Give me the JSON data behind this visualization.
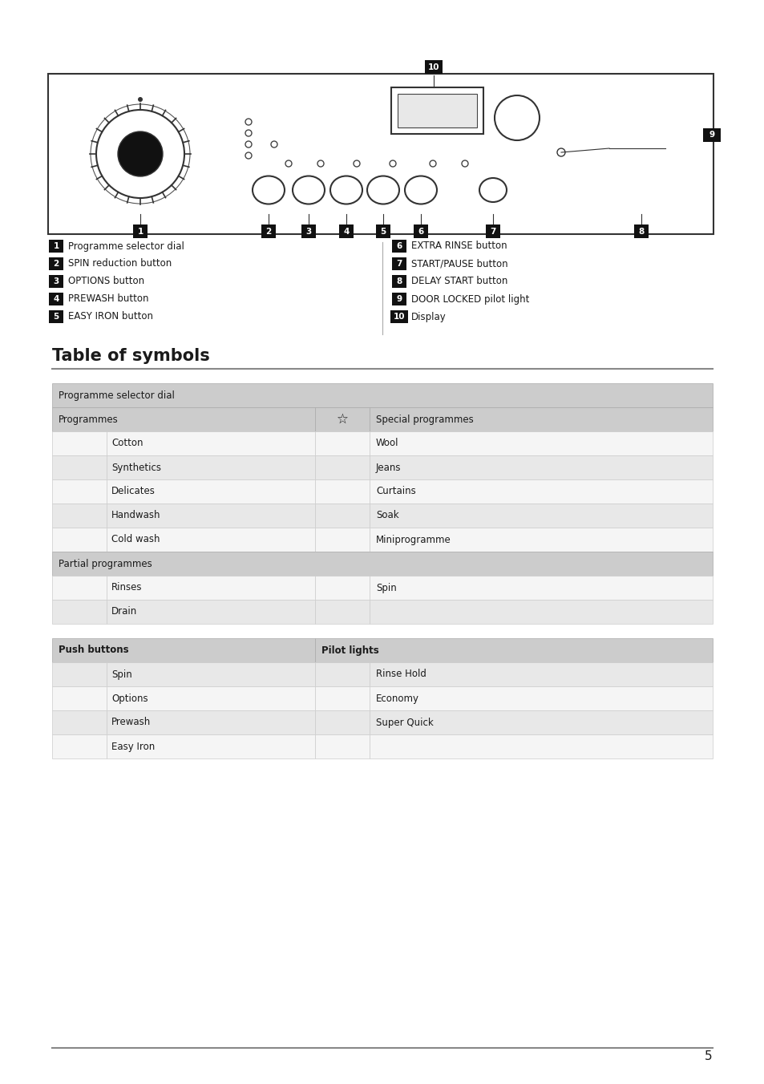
{
  "page_bg": "#ffffff",
  "title_symbols": "Table of symbols",
  "page_number": "5",
  "legend_items_left": [
    [
      "1",
      "Programme selector dial"
    ],
    [
      "2",
      "SPIN reduction button"
    ],
    [
      "3",
      "OPTIONS button"
    ],
    [
      "4",
      "PREWASH button"
    ],
    [
      "5",
      "EASY IRON button"
    ]
  ],
  "legend_items_right": [
    [
      "6",
      "EXTRA RINSE button"
    ],
    [
      "7",
      "START/PAUSE button"
    ],
    [
      "8",
      "DELAY START button"
    ],
    [
      "9",
      "DOOR LOCKED pilot light"
    ],
    [
      "10",
      "Display"
    ]
  ],
  "table1_header": "Programme selector dial",
  "table1_col1_header": "Programmes",
  "table1_col2_header": "Special programmes",
  "table1_partial_header": "Partial programmes",
  "table2_col1_header": "Push buttons",
  "table2_col2_header": "Pilot lights",
  "bg_light": "#e8e8e8",
  "bg_medium": "#d4d4d4",
  "bg_white": "#f5f5f5",
  "border_color": "#aaaaaa",
  "text_color": "#1a1a1a"
}
